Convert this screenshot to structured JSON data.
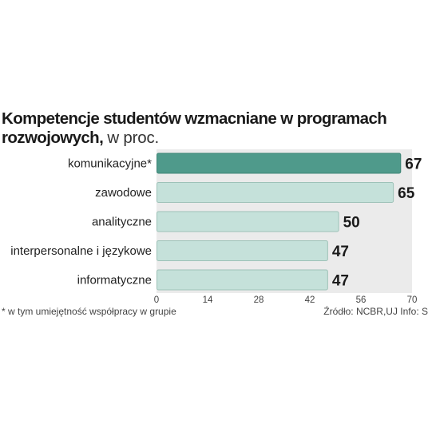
{
  "chart_data": {
    "type": "bar",
    "orientation": "horizontal",
    "title": "Kompetencje studentów wzmacniane w programach rozwojowych,",
    "title_unit": "w proc.",
    "categories": [
      "komunikacyjne*",
      "zawodowe",
      "analityczne",
      "interpersonalne i językowe",
      "informatyczne"
    ],
    "values": [
      67,
      65,
      50,
      47,
      47
    ],
    "value_labels": [
      "67",
      "65",
      "50",
      "47",
      "47"
    ],
    "xlim": [
      0,
      70
    ],
    "xticks": [
      "0",
      "14",
      "28",
      "42",
      "56",
      "70"
    ],
    "grid": false,
    "colors": {
      "highlight_bar": "#4f9a8b",
      "bar": "#c5e1da",
      "bar_border": "#9ec2b8",
      "panel": "#ebebeb"
    }
  },
  "footnote": "* w tym umiejętność współpracy w grupie",
  "source": "Źródło: NCBR,UJ  Info: S"
}
